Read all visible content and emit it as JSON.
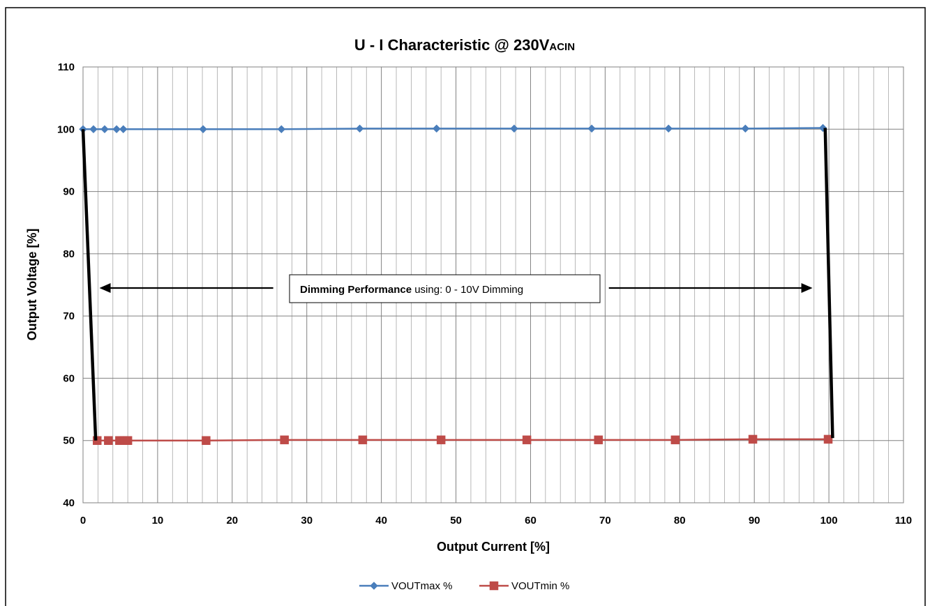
{
  "chart_data": {
    "type": "line",
    "title": "U - I Characteristic @ 230V",
    "title_subscript": "ACIN",
    "xlabel": "Output Current [%]",
    "ylabel": "Output Voltage [%]",
    "xlim": [
      0,
      110
    ],
    "ylim": [
      40,
      110
    ],
    "x_major_ticks": [
      0,
      10,
      20,
      30,
      40,
      50,
      60,
      70,
      80,
      90,
      100,
      110
    ],
    "y_major_ticks": [
      40,
      50,
      60,
      70,
      80,
      90,
      100,
      110
    ],
    "grid": true,
    "legend_position": "bottom",
    "series": [
      {
        "name": "VOUTmax %",
        "color": "#4a7ebb",
        "marker": "diamond",
        "x": [
          0,
          1.4,
          2.9,
          4.5,
          5.4,
          16.1,
          26.6,
          37.1,
          47.4,
          57.8,
          68.2,
          78.5,
          88.8,
          99.2
        ],
        "y": [
          100,
          100,
          100,
          100,
          100,
          100,
          100,
          100.1,
          100.1,
          100.1,
          100.1,
          100.1,
          100.1,
          100.2
        ]
      },
      {
        "name": "VOUTmin %",
        "color": "#be4b48",
        "marker": "square",
        "x": [
          1.9,
          3.4,
          4.9,
          5.5,
          6.0,
          16.5,
          27.0,
          37.5,
          48.0,
          59.5,
          69.1,
          79.4,
          89.8,
          99.9
        ],
        "y": [
          50,
          50,
          50,
          50,
          50,
          50,
          50.1,
          50.1,
          50.1,
          50.1,
          50.1,
          50.1,
          50.2,
          50.2
        ]
      }
    ],
    "boundary_lines": [
      {
        "x": [
          0,
          1.7
        ],
        "y": [
          100,
          50
        ]
      },
      {
        "x": [
          99.5,
          100.5
        ],
        "y": [
          100.2,
          50.4
        ]
      }
    ],
    "annotation": {
      "bold_text": "Dimming Performance",
      "text": " using: 0 - 10V Dimming",
      "arrow_left_to": [
        2.2,
        74.5
      ],
      "arrow_left_from": [
        25.5,
        74.5
      ],
      "arrow_right_from": [
        70.5,
        74.5
      ],
      "arrow_right_to": [
        97.8,
        74.5
      ]
    }
  }
}
